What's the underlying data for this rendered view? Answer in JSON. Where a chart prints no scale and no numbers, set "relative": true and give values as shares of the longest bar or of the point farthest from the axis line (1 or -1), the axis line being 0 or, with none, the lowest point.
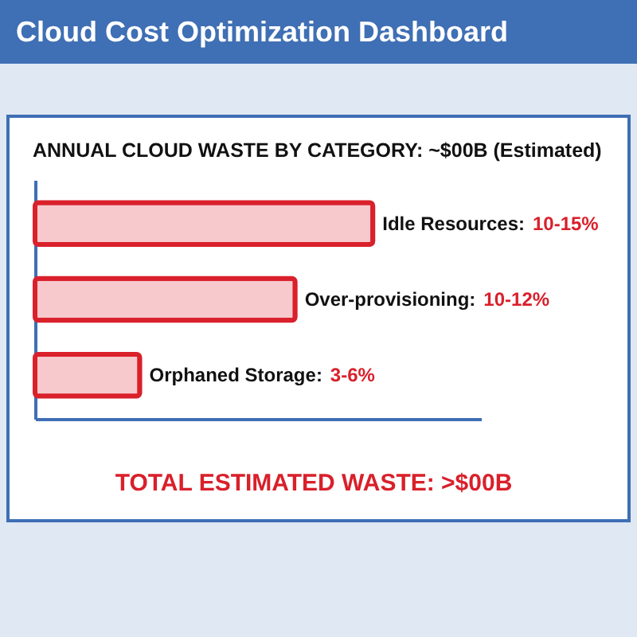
{
  "chart_data": {
    "type": "bar",
    "orientation": "horizontal",
    "relative": true,
    "title": "ANNUAL CLOUD WASTE BY CATEGORY: ~$00B (Estimated)",
    "categories": [
      "Idle Resources: 10-15%",
      "Over-provisioning: 10-12%",
      "Orphaned Storage: 3-6%"
    ],
    "values": [
      1,
      0.77,
      0.31
    ],
    "color": "#f7c9cd",
    "annotations": [
      "Cloud Cost Optimization Dashboard",
      "TOTAL ESTIMATED WASTE: >$00B"
    ]
  }
}
